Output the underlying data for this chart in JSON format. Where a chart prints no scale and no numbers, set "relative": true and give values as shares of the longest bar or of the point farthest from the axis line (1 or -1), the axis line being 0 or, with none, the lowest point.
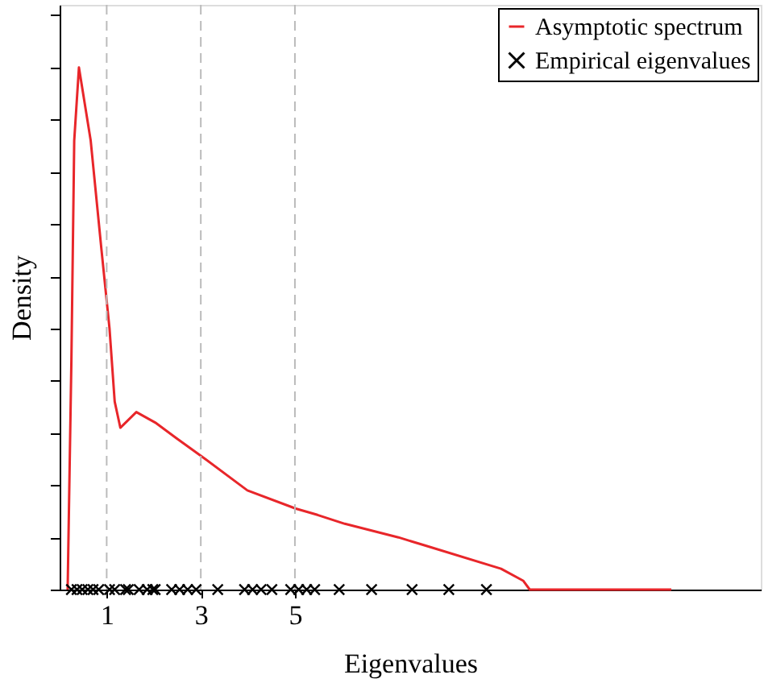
{
  "chart_data": {
    "type": "line",
    "relative": true,
    "xlabel": "Eigenvalues",
    "ylabel": "Density",
    "xlim": [
      0,
      14.9
    ],
    "xticks": [
      1,
      3,
      5
    ],
    "legend": "top right",
    "grid": false,
    "ref_lines": [
      {
        "axis": "x",
        "value": 1,
        "color": "#bbbbbb",
        "line_style": "dashed"
      },
      {
        "axis": "x",
        "value": 3,
        "color": "#bbbbbb",
        "line_style": "dashed"
      },
      {
        "axis": "x",
        "value": 5,
        "color": "#bbbbbb",
        "line_style": "dashed"
      }
    ],
    "series": [
      {
        "name": "Asymptotic spectrum",
        "color": "#e8262a",
        "marker": "none",
        "line_style": "solid",
        "x": [
          0.17,
          0.25,
          0.31,
          0.41,
          0.66,
          0.89,
          1.06,
          1.17,
          1.29,
          1.63,
          2.03,
          2.48,
          3.02,
          3.99,
          5.02,
          5.48,
          6.06,
          7.2,
          7.78,
          9.38,
          9.85,
          9.99,
          13.0
        ],
        "values": [
          0,
          0.44,
          0.86,
          1.0,
          0.86,
          0.65,
          0.5,
          0.36,
          0.31,
          0.34,
          0.32,
          0.29,
          0.255,
          0.19,
          0.155,
          0.143,
          0.126,
          0.1,
          0.084,
          0.04,
          0.017,
          0,
          0
        ]
      },
      {
        "name": "Empirical eigenvalues",
        "type": "scatter",
        "color": "#000000",
        "marker": "cross",
        "x": [
          0.25,
          0.37,
          0.48,
          0.6,
          0.71,
          0.83,
          1.06,
          1.17,
          1.4,
          1.46,
          1.69,
          1.86,
          1.98,
          2.03,
          2.38,
          2.55,
          2.72,
          2.9,
          3.36,
          3.93,
          4.1,
          4.28,
          4.51,
          4.91,
          5.08,
          5.25,
          5.42,
          5.94,
          6.63,
          7.49,
          8.27,
          9.07
        ],
        "values": [
          0,
          0,
          0,
          0,
          0,
          0,
          0,
          0,
          0,
          0,
          0,
          0,
          0,
          0,
          0,
          0,
          0,
          0,
          0,
          0,
          0,
          0,
          0,
          0,
          0,
          0,
          0,
          0,
          0,
          0,
          0,
          0
        ]
      }
    ]
  }
}
